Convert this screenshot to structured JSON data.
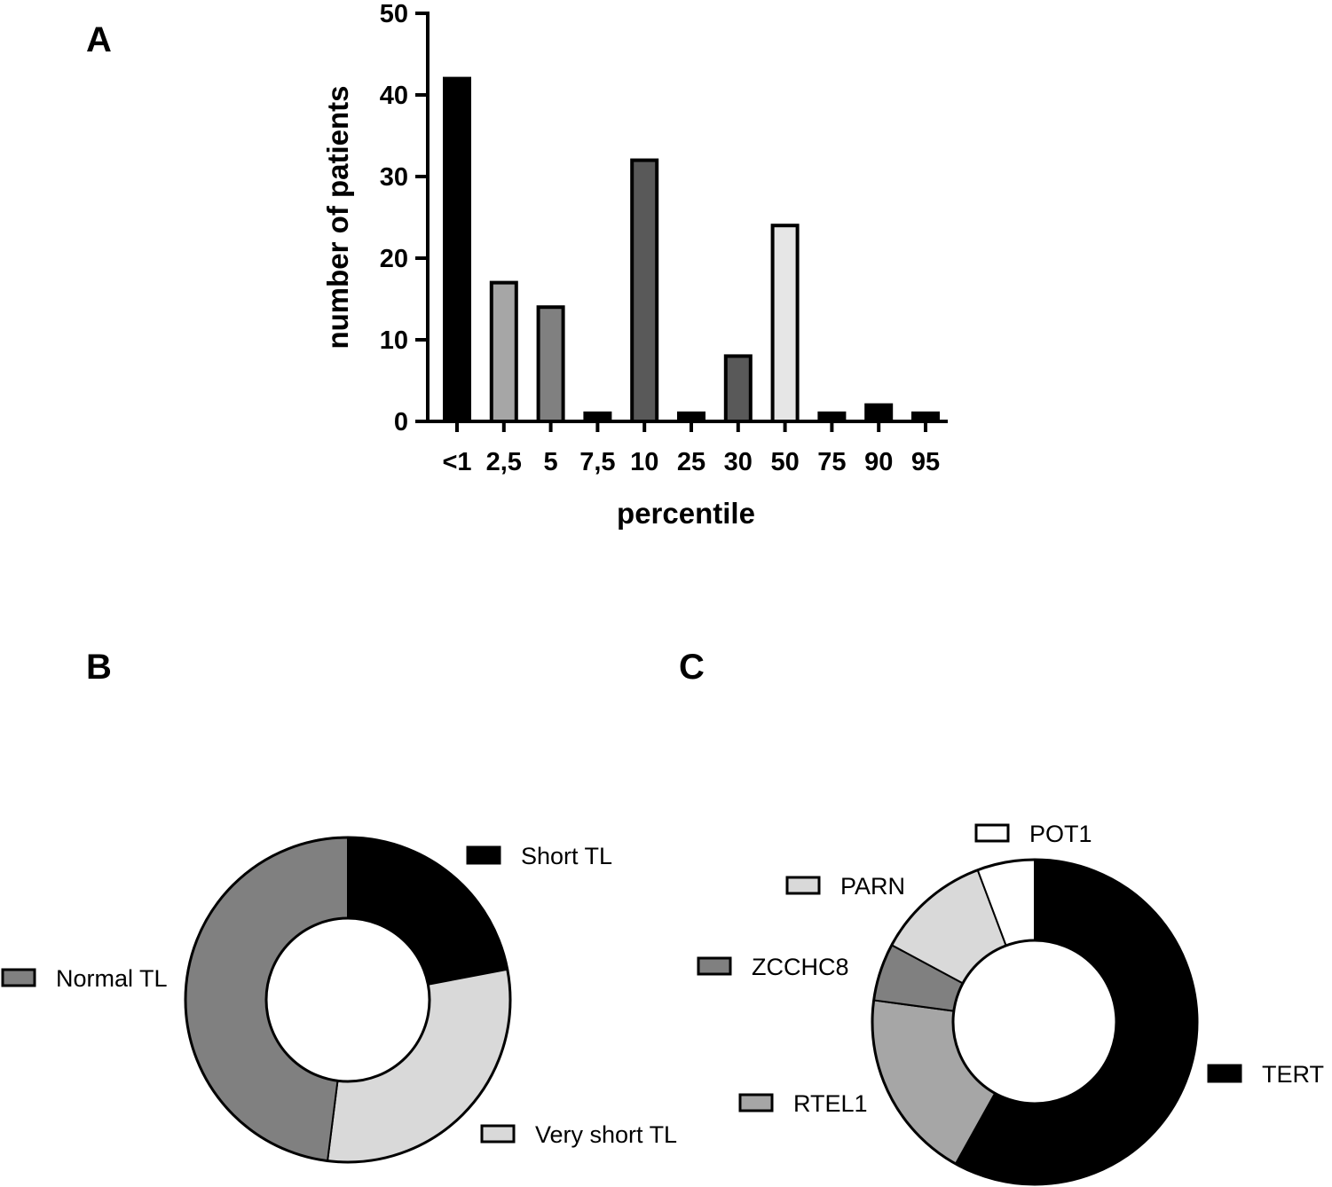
{
  "panels": {
    "a": {
      "letter": "A"
    },
    "b": {
      "letter": "B"
    },
    "c": {
      "letter": "C"
    }
  },
  "chart_data": [
    {
      "type": "bar",
      "panel": "A",
      "title": "",
      "xlabel": "percentile",
      "ylabel": "number of patients",
      "ylim": [
        0,
        50
      ],
      "yticks": [
        0,
        10,
        20,
        30,
        40,
        50
      ],
      "grid": false,
      "categories": [
        "<1",
        "2,5",
        "5",
        "7,5",
        "10",
        "25",
        "30",
        "50",
        "75",
        "90",
        "95"
      ],
      "values": [
        42,
        17,
        14,
        1,
        32,
        1,
        8,
        24,
        1,
        2,
        1
      ],
      "colors": [
        "#000000",
        "#a6a6a6",
        "#808080",
        "#000000",
        "#595959",
        "#000000",
        "#595959",
        "#e6e6e6",
        "#000000",
        "#000000",
        "#000000"
      ]
    },
    {
      "type": "pie",
      "panel": "B",
      "donut": true,
      "title": "",
      "labels": [
        "Short TL",
        "Very short TL",
        "Normal TL"
      ],
      "values": [
        22,
        30,
        48
      ],
      "colors": [
        "#000000",
        "#d9d9d9",
        "#808080"
      ]
    },
    {
      "type": "pie",
      "panel": "C",
      "donut": true,
      "title": "",
      "labels": [
        "TERT",
        "RTEL1",
        "ZCCHC8",
        "PARN",
        "POT1"
      ],
      "values": [
        61,
        20,
        6,
        12,
        6
      ],
      "colors": [
        "#000000",
        "#a6a6a6",
        "#808080",
        "#d9d9d9",
        "#ffffff"
      ]
    }
  ]
}
